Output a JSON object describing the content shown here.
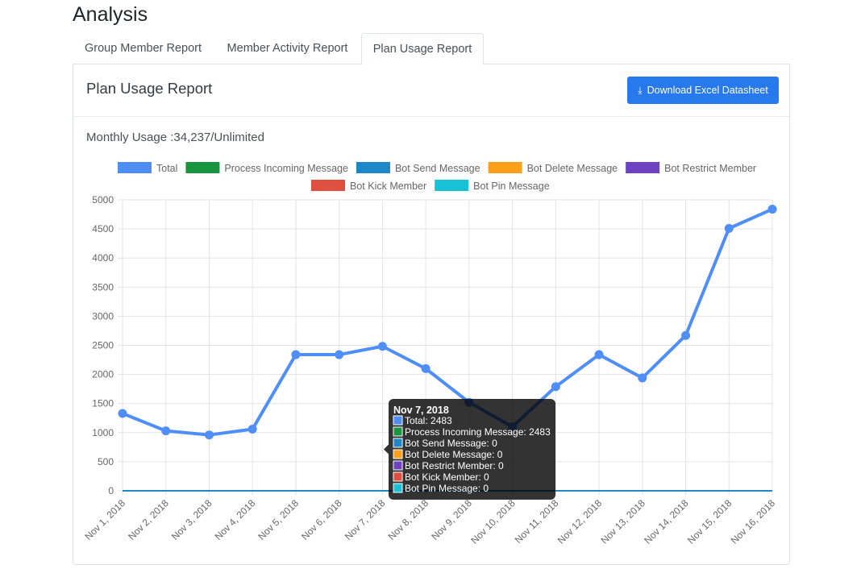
{
  "page": {
    "title": "Analysis"
  },
  "tabs": [
    {
      "label": "Group Member Report",
      "active": false
    },
    {
      "label": "Member Activity Report",
      "active": false
    },
    {
      "label": "Plan Usage Report",
      "active": true
    }
  ],
  "card": {
    "title": "Plan Usage Report",
    "download_label": "Download Excel Datasheet",
    "download_icon": "download-icon",
    "monthly_usage": "Monthly Usage :34,237/Unlimited"
  },
  "colors": {
    "accent": "#2979ee"
  },
  "chart_data": {
    "type": "line",
    "categories": [
      "Nov 1, 2018",
      "Nov 2, 2018",
      "Nov 3, 2018",
      "Nov 4, 2018",
      "Nov 5, 2018",
      "Nov 6, 2018",
      "Nov 7, 2018",
      "Nov 8, 2018",
      "Nov 9, 2018",
      "Nov 10, 2018",
      "Nov 11, 2018",
      "Nov 12, 2018",
      "Nov 13, 2018",
      "Nov 14, 2018",
      "Nov 15, 2018",
      "Nov 16, 2018"
    ],
    "series": [
      {
        "name": "Total",
        "color": "#4f8ef7",
        "values": [
          1330,
          1030,
          960,
          1060,
          2340,
          2340,
          2483,
          2100,
          1520,
          1100,
          1790,
          2340,
          1940,
          2670,
          4510,
          4840
        ]
      },
      {
        "name": "Process Incoming Message",
        "color": "#1a9641",
        "values": [
          1330,
          1030,
          960,
          1060,
          2340,
          2340,
          2483,
          2100,
          1520,
          1100,
          1790,
          2340,
          1940,
          2670,
          4510,
          4840
        ]
      },
      {
        "name": "Bot Send Message",
        "color": "#1e88c7",
        "values": [
          0,
          0,
          0,
          0,
          0,
          0,
          0,
          0,
          0,
          0,
          0,
          0,
          0,
          0,
          0,
          0
        ]
      },
      {
        "name": "Bot Delete Message",
        "color": "#ff9f1a",
        "values": [
          0,
          0,
          0,
          0,
          0,
          0,
          0,
          0,
          0,
          0,
          0,
          0,
          0,
          0,
          0,
          0
        ]
      },
      {
        "name": "Bot Restrict Member",
        "color": "#6f42c1",
        "values": [
          0,
          0,
          0,
          0,
          0,
          0,
          0,
          0,
          0,
          0,
          0,
          0,
          0,
          0,
          0,
          0
        ]
      },
      {
        "name": "Bot Kick Member",
        "color": "#e05040",
        "values": [
          0,
          0,
          0,
          0,
          0,
          0,
          0,
          0,
          0,
          0,
          0,
          0,
          0,
          0,
          0,
          0
        ]
      },
      {
        "name": "Bot Pin Message",
        "color": "#17c1d6",
        "values": [
          0,
          0,
          0,
          0,
          0,
          0,
          0,
          0,
          0,
          0,
          0,
          0,
          0,
          0,
          0,
          0
        ]
      }
    ],
    "ylim": [
      0,
      5000
    ],
    "yticks": [
      0,
      500,
      1000,
      1500,
      2000,
      2500,
      3000,
      3500,
      4000,
      4500,
      5000
    ],
    "grid": true,
    "legend_position": "top",
    "tooltip": {
      "title": "Nov 7, 2018",
      "lines": [
        "Total: 2483",
        "Process Incoming Message: 2483",
        "Bot Send Message: 0",
        "Bot Delete Message: 0",
        "Bot Restrict Member: 0",
        "Bot Kick Member: 0",
        "Bot Pin Message: 0"
      ]
    }
  }
}
